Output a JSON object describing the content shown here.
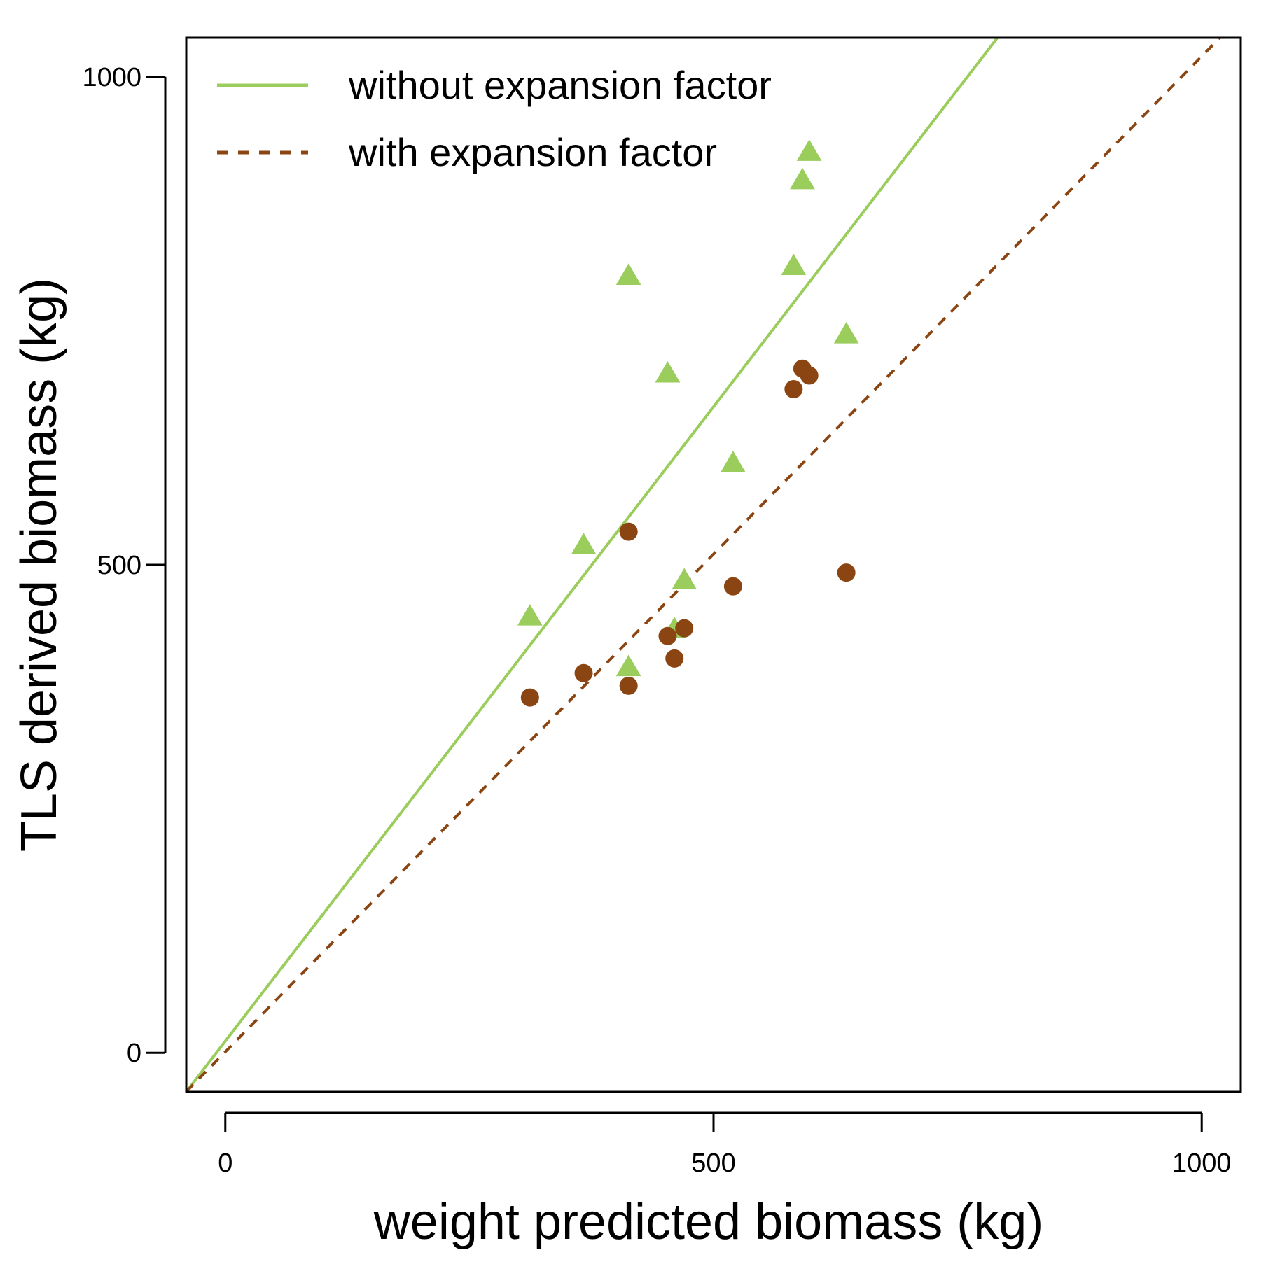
{
  "chart_data": {
    "type": "scatter",
    "title": "",
    "xlabel": "weight predicted biomass (kg)",
    "ylabel": "TLS derived biomass (kg)",
    "xlim": [
      -40,
      1040
    ],
    "ylim": [
      -40,
      1040
    ],
    "xticks": [
      0,
      500,
      1000
    ],
    "yticks": [
      0,
      500,
      1000
    ],
    "grid": false,
    "legend_position": "top-left",
    "series": [
      {
        "name": "without expansion factor",
        "marker": "triangle",
        "color": "#9ACD5C",
        "points": [
          [
            312,
            447
          ],
          [
            367,
            520
          ],
          [
            413,
            395
          ],
          [
            413,
            796
          ],
          [
            453,
            696
          ],
          [
            460,
            434
          ],
          [
            470,
            484
          ],
          [
            520,
            604
          ],
          [
            582,
            806
          ],
          [
            591,
            894
          ],
          [
            598,
            923
          ],
          [
            636,
            736
          ]
        ]
      },
      {
        "name": "with expansion factor",
        "marker": "circle",
        "color": "#8B4513",
        "points": [
          [
            312,
            364
          ],
          [
            367,
            389
          ],
          [
            413,
            376
          ],
          [
            413,
            534
          ],
          [
            453,
            427
          ],
          [
            460,
            404
          ],
          [
            470,
            435
          ],
          [
            520,
            478
          ],
          [
            582,
            680
          ],
          [
            591,
            701
          ],
          [
            598,
            694
          ],
          [
            636,
            492
          ]
        ]
      }
    ],
    "fit_lines": [
      {
        "legend": "without expansion factor",
        "style": "solid",
        "color": "#9ACD5C",
        "slope": 1.3,
        "intercept": 12
      },
      {
        "legend": "with expansion factor",
        "style": "dashed",
        "color": "#8B4513",
        "slope": 1.02,
        "intercept": 1
      }
    ]
  }
}
